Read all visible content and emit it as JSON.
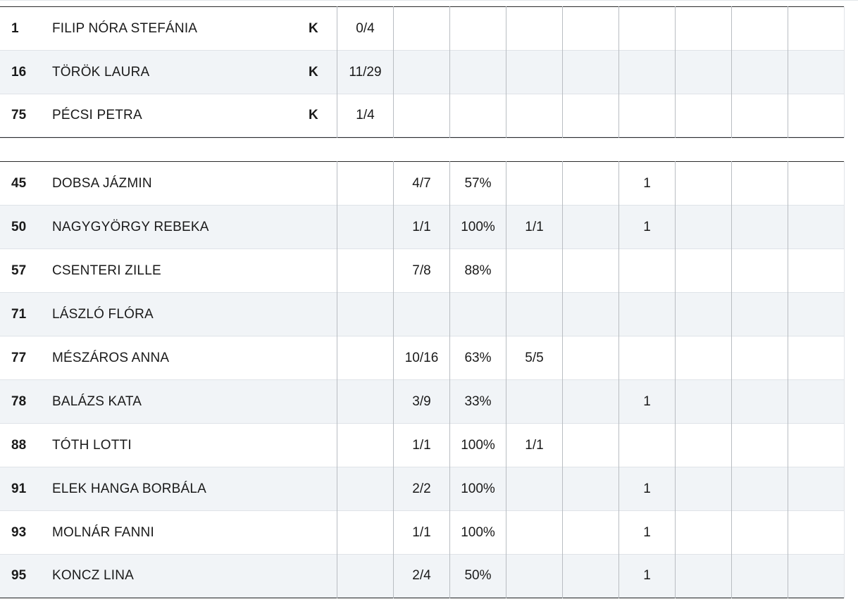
{
  "goalkeepers": [
    {
      "number": "1",
      "name": "FILIP NÓRA STEFÁNIA",
      "badge": "K",
      "cells": [
        "0/4",
        "",
        "",
        "",
        "",
        "",
        "",
        "",
        ""
      ]
    },
    {
      "number": "16",
      "name": "TÖRÖK LAURA",
      "badge": "K",
      "cells": [
        "11/29",
        "",
        "",
        "",
        "",
        "",
        "",
        "",
        ""
      ]
    },
    {
      "number": "75",
      "name": "PÉCSI PETRA",
      "badge": "K",
      "cells": [
        "1/4",
        "",
        "",
        "",
        "",
        "",
        "",
        "",
        ""
      ]
    }
  ],
  "field_players": [
    {
      "number": "45",
      "name": "DOBSA JÁZMIN",
      "badge": "",
      "cells": [
        "",
        "4/7",
        "57%",
        "",
        "",
        "1",
        "",
        "",
        ""
      ]
    },
    {
      "number": "50",
      "name": "NAGYGYÖRGY REBEKA",
      "badge": "",
      "cells": [
        "",
        "1/1",
        "100%",
        "1/1",
        "",
        "1",
        "",
        "",
        ""
      ]
    },
    {
      "number": "57",
      "name": "CSENTERI ZILLE",
      "badge": "",
      "cells": [
        "",
        "7/8",
        "88%",
        "",
        "",
        "",
        "",
        "",
        ""
      ]
    },
    {
      "number": "71",
      "name": "LÁSZLÓ FLÓRA",
      "badge": "",
      "cells": [
        "",
        "",
        "",
        "",
        "",
        "",
        "",
        "",
        ""
      ]
    },
    {
      "number": "77",
      "name": "MÉSZÁROS ANNA",
      "badge": "",
      "cells": [
        "",
        "10/16",
        "63%",
        "5/5",
        "",
        "",
        "",
        "",
        ""
      ]
    },
    {
      "number": "78",
      "name": "BALÁZS KATA",
      "badge": "",
      "cells": [
        "",
        "3/9",
        "33%",
        "",
        "",
        "1",
        "",
        "",
        ""
      ]
    },
    {
      "number": "88",
      "name": "TÓTH LOTTI",
      "badge": "",
      "cells": [
        "",
        "1/1",
        "100%",
        "1/1",
        "",
        "",
        "",
        "",
        ""
      ]
    },
    {
      "number": "91",
      "name": "ELEK HANGA BORBÁLA",
      "badge": "",
      "cells": [
        "",
        "2/2",
        "100%",
        "",
        "",
        "1",
        "",
        "",
        ""
      ]
    },
    {
      "number": "93",
      "name": "MOLNÁR FANNI",
      "badge": "",
      "cells": [
        "",
        "1/1",
        "100%",
        "",
        "",
        "1",
        "",
        "",
        ""
      ]
    },
    {
      "number": "95",
      "name": "KONCZ LINA",
      "badge": "",
      "cells": [
        "",
        "2/4",
        "50%",
        "",
        "",
        "1",
        "",
        "",
        ""
      ]
    }
  ]
}
